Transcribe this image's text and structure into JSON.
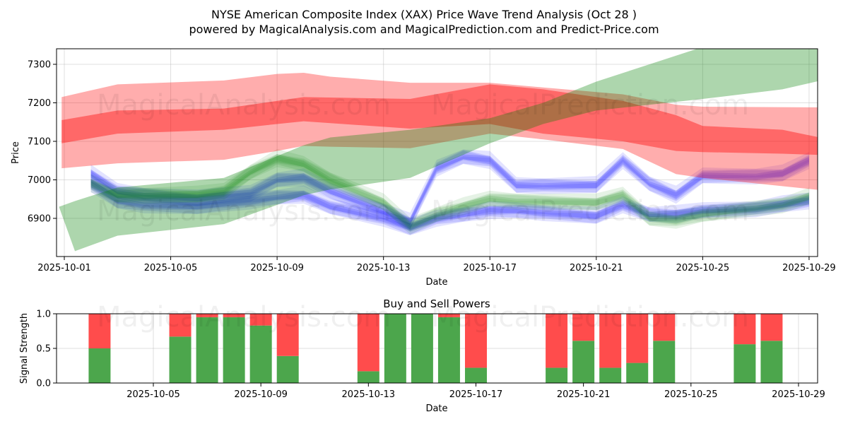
{
  "header": {
    "title_line1": "NYSE American Composite Index (XAX) Price Wave Trend Analysis (Oct 28 )",
    "title_line2": "powered by MagicalAnalysis.com and MagicalPrediction.com and Predict-Price.com"
  },
  "watermarks": [
    "MagicalAnalysis.com",
    "MagicalPrediction.com"
  ],
  "colors": {
    "red": "#ff0000",
    "green": "#008000",
    "blue": "#0000ff",
    "bar_buy": "#4ca64c",
    "bar_sell": "#ff4c4c"
  },
  "chart_data": [
    {
      "type": "area",
      "title": "",
      "xlabel": "Date",
      "ylabel": "Price",
      "ylim": [
        6801,
        7340
      ],
      "x_tick_labels": [
        "2025-10-01",
        "2025-10-05",
        "2025-10-09",
        "2025-10-13",
        "2025-10-17",
        "2025-10-21",
        "2025-10-25",
        "2025-10-29"
      ],
      "x_tick_days": [
        0,
        4,
        8,
        12,
        16,
        20,
        24,
        28
      ],
      "y_ticks": [
        6900,
        7000,
        7100,
        7200,
        7300
      ],
      "grid": true,
      "x_unit": "days since 2025-10-01",
      "bands": [
        {
          "name": "red-wide",
          "color": "red",
          "opacity": 0.32,
          "x": [
            -0.1,
            2,
            6,
            8,
            9,
            10,
            13,
            16,
            18,
            21,
            23,
            24,
            28.9
          ],
          "upper": [
            7215,
            7248,
            7258,
            7275,
            7278,
            7268,
            7252,
            7252,
            7240,
            7222,
            7195,
            7190,
            7188
          ],
          "lower": [
            7030,
            7043,
            7052,
            7075,
            7088,
            7086,
            7082,
            7120,
            7105,
            7080,
            7015,
            7005,
            6970
          ]
        },
        {
          "name": "red-core",
          "color": "red",
          "opacity": 0.4,
          "x": [
            -0.1,
            2,
            6,
            8,
            9,
            13,
            16,
            18,
            21,
            23,
            24,
            27,
            29.1
          ],
          "upper": [
            7155,
            7180,
            7185,
            7205,
            7215,
            7210,
            7248,
            7235,
            7205,
            7168,
            7140,
            7130,
            7100
          ],
          "lower": [
            7095,
            7120,
            7130,
            7145,
            7152,
            7133,
            7145,
            7120,
            7100,
            7075,
            7072,
            7068,
            7063
          ]
        },
        {
          "name": "green-trend",
          "color": "green",
          "opacity": 0.32,
          "x": [
            -0.2,
            0.4,
            2,
            6,
            9,
            10,
            13,
            16,
            18,
            20,
            22,
            24,
            27,
            28.9,
            29.3
          ],
          "upper": [
            6930,
            6945,
            6980,
            7005,
            7090,
            7110,
            7130,
            7160,
            7200,
            7255,
            7300,
            7345,
            7345,
            7345,
            7270
          ],
          "lower": [
            6930,
            6815,
            6855,
            6885,
            6960,
            6975,
            7005,
            7095,
            7145,
            7180,
            7195,
            7210,
            7235,
            7265,
            7270
          ]
        }
      ],
      "waves": [
        {
          "name": "blue-upper",
          "color": "blue",
          "x": [
            1,
            2,
            3,
            5,
            7,
            8,
            9,
            10,
            12,
            13,
            14,
            15,
            16,
            17,
            18,
            20,
            21,
            22,
            23,
            24,
            26,
            27,
            28
          ],
          "y": [
            7015,
            6970,
            6960,
            6950,
            6965,
            7000,
            7005,
            6970,
            6920,
            6890,
            7030,
            7060,
            7050,
            6985,
            6985,
            6985,
            7050,
            6990,
            6960,
            7010,
            7010,
            7015,
            7050
          ]
        },
        {
          "name": "blue-lower",
          "color": "blue",
          "x": [
            1,
            2,
            3,
            5,
            7,
            8,
            9,
            10,
            12,
            13,
            14,
            15,
            16,
            17,
            18,
            20,
            21,
            22,
            23,
            24,
            26,
            27,
            28
          ],
          "y": [
            6990,
            6945,
            6935,
            6930,
            6945,
            6955,
            6960,
            6930,
            6900,
            6875,
            6900,
            6910,
            6920,
            6920,
            6915,
            6905,
            6935,
            6910,
            6910,
            6920,
            6925,
            6935,
            6945
          ]
        },
        {
          "name": "green-wave",
          "color": "green",
          "x": [
            1,
            2,
            3,
            5,
            6,
            7,
            8,
            9,
            10,
            12,
            13,
            14,
            15,
            16,
            17,
            20,
            21,
            22,
            23,
            24,
            27,
            28
          ],
          "y": [
            6990,
            6960,
            6960,
            6960,
            6970,
            7020,
            7055,
            7040,
            7000,
            6940,
            6880,
            6910,
            6930,
            6950,
            6945,
            6940,
            6960,
            6900,
            6895,
            6910,
            6935,
            6955
          ]
        }
      ]
    },
    {
      "type": "bar",
      "title": "Buy and Sell Powers",
      "xlabel": "Date",
      "ylabel": "Signal Strength",
      "ylim": [
        0,
        1
      ],
      "y_ticks": [
        "0.0",
        "0.5",
        "1.0"
      ],
      "x_tick_labels": [
        "2025-10-05",
        "2025-10-09",
        "2025-10-13",
        "2025-10-17",
        "2025-10-21",
        "2025-10-25",
        "2025-10-29"
      ],
      "x_tick_days": [
        5,
        9,
        13,
        17,
        21,
        25,
        29
      ],
      "categories": [
        "2025-10-03",
        "2025-10-06",
        "2025-10-07",
        "2025-10-08",
        "2025-10-09",
        "2025-10-10",
        "2025-10-13",
        "2025-10-14",
        "2025-10-15",
        "2025-10-16",
        "2025-10-17",
        "2025-10-20",
        "2025-10-21",
        "2025-10-22",
        "2025-10-23",
        "2025-10-24",
        "2025-10-27",
        "2025-10-28"
      ],
      "days": [
        3,
        6,
        7,
        8,
        9,
        10,
        13,
        14,
        15,
        16,
        17,
        20,
        21,
        22,
        23,
        24,
        27,
        28
      ],
      "series": [
        {
          "name": "Buy",
          "values": [
            0.5,
            0.67,
            0.95,
            0.95,
            0.83,
            0.39,
            0.17,
            1.0,
            1.0,
            0.95,
            0.22,
            0.22,
            0.61,
            0.22,
            0.29,
            0.61,
            0.56,
            0.61
          ]
        },
        {
          "name": "Sell",
          "values": [
            0.5,
            0.33,
            0.05,
            0.05,
            0.17,
            0.61,
            0.83,
            0.0,
            0.0,
            0.05,
            0.78,
            0.78,
            0.39,
            0.78,
            0.71,
            0.39,
            0.44,
            0.39
          ]
        }
      ]
    }
  ]
}
